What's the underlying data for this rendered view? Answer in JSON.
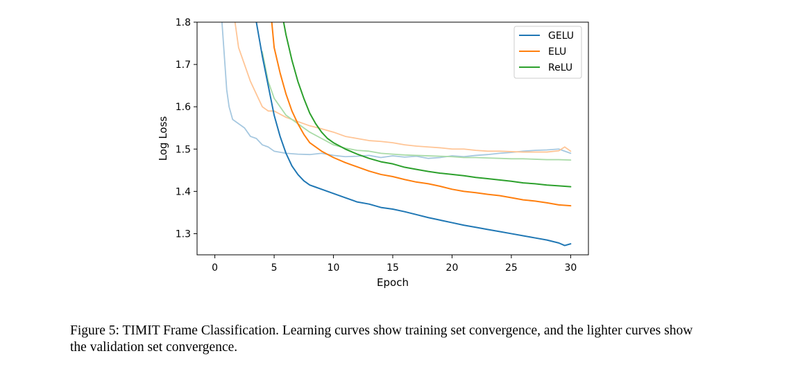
{
  "caption": "Figure 5: TIMIT Frame Classification. Learning curves show training set convergence, and the lighter curves show the validation set convergence.",
  "chart_data": {
    "type": "line",
    "xlabel": "Epoch",
    "ylabel": "Log Loss",
    "xlim": [
      -1.5,
      31.5
    ],
    "ylim": [
      1.25,
      1.8
    ],
    "xticks": [
      0,
      5,
      10,
      15,
      20,
      25,
      30
    ],
    "yticks": [
      1.3,
      1.4,
      1.5,
      1.6,
      1.7,
      1.8
    ],
    "xtick_labels": [
      "0",
      "5",
      "10",
      "15",
      "20",
      "25",
      "30"
    ],
    "ytick_labels": [
      "1.3",
      "1.4",
      "1.5",
      "1.6",
      "1.7",
      "1.8"
    ],
    "legend_position": "top-right",
    "series": [
      {
        "name": "GELU",
        "role": "train",
        "color": "#1f77b4",
        "x": [
          3.5,
          4,
          4.5,
          5,
          5.5,
          6,
          6.5,
          7,
          7.5,
          8,
          8.5,
          9,
          10,
          11,
          12,
          13,
          14,
          15,
          16,
          17,
          18,
          19,
          20,
          21,
          22,
          23,
          24,
          25,
          26,
          27,
          28,
          29,
          29.5,
          30
        ],
        "y": [
          1.8,
          1.72,
          1.65,
          1.58,
          1.53,
          1.49,
          1.46,
          1.44,
          1.425,
          1.415,
          1.41,
          1.405,
          1.395,
          1.385,
          1.375,
          1.37,
          1.362,
          1.358,
          1.352,
          1.345,
          1.338,
          1.332,
          1.326,
          1.32,
          1.315,
          1.31,
          1.305,
          1.3,
          1.295,
          1.29,
          1.285,
          1.278,
          1.272,
          1.276
        ]
      },
      {
        "name": "ELU",
        "role": "train",
        "color": "#ff7f0e",
        "x": [
          4.8,
          5,
          5.5,
          6,
          6.5,
          7,
          7.5,
          8,
          8.5,
          9,
          10,
          11,
          12,
          13,
          14,
          15,
          16,
          17,
          18,
          19,
          20,
          21,
          22,
          23,
          24,
          25,
          26,
          27,
          28,
          29,
          30
        ],
        "y": [
          1.8,
          1.74,
          1.68,
          1.63,
          1.59,
          1.56,
          1.535,
          1.515,
          1.505,
          1.495,
          1.48,
          1.468,
          1.458,
          1.448,
          1.44,
          1.435,
          1.428,
          1.422,
          1.418,
          1.412,
          1.405,
          1.4,
          1.397,
          1.393,
          1.39,
          1.385,
          1.38,
          1.377,
          1.373,
          1.368,
          1.366
        ]
      },
      {
        "name": "ReLU",
        "role": "train",
        "color": "#2ca02c",
        "x": [
          5.8,
          6,
          6.5,
          7,
          7.5,
          8,
          8.5,
          9,
          9.5,
          10,
          11,
          12,
          13,
          14,
          15,
          16,
          17,
          18,
          19,
          20,
          21,
          22,
          23,
          24,
          25,
          26,
          27,
          28,
          29,
          30
        ],
        "y": [
          1.8,
          1.77,
          1.71,
          1.66,
          1.62,
          1.585,
          1.56,
          1.54,
          1.525,
          1.515,
          1.5,
          1.488,
          1.478,
          1.47,
          1.465,
          1.457,
          1.452,
          1.447,
          1.443,
          1.44,
          1.437,
          1.433,
          1.43,
          1.427,
          1.424,
          1.42,
          1.418,
          1.415,
          1.413,
          1.411
        ]
      },
      {
        "name": "GELU (validation)",
        "role": "validation",
        "color": "#a6c8e0",
        "x": [
          0.6,
          0.8,
          1,
          1.2,
          1.5,
          2,
          2.5,
          3,
          3.5,
          4,
          4.5,
          5,
          6,
          7,
          8,
          9,
          10,
          11,
          12,
          13,
          14,
          15,
          16,
          17,
          18,
          19,
          20,
          21,
          22,
          23,
          24,
          25,
          26,
          27,
          28,
          29,
          30
        ],
        "y": [
          1.8,
          1.72,
          1.64,
          1.6,
          1.57,
          1.56,
          1.55,
          1.53,
          1.525,
          1.51,
          1.505,
          1.495,
          1.49,
          1.488,
          1.487,
          1.49,
          1.485,
          1.482,
          1.483,
          1.485,
          1.48,
          1.484,
          1.481,
          1.483,
          1.478,
          1.48,
          1.484,
          1.482,
          1.485,
          1.487,
          1.49,
          1.492,
          1.495,
          1.497,
          1.498,
          1.5,
          1.49
        ]
      },
      {
        "name": "ELU (validation)",
        "role": "validation",
        "color": "#ffc596",
        "x": [
          1.7,
          2,
          2.5,
          3,
          3.5,
          4,
          4.5,
          5,
          6,
          7,
          8,
          9,
          10,
          11,
          12,
          13,
          14,
          15,
          16,
          17,
          18,
          19,
          20,
          21,
          22,
          23,
          24,
          25,
          26,
          27,
          28,
          29,
          29.5,
          30
        ],
        "y": [
          1.8,
          1.74,
          1.7,
          1.66,
          1.63,
          1.6,
          1.59,
          1.59,
          1.575,
          1.565,
          1.555,
          1.548,
          1.54,
          1.53,
          1.525,
          1.52,
          1.518,
          1.515,
          1.51,
          1.507,
          1.505,
          1.503,
          1.5,
          1.5,
          1.497,
          1.495,
          1.495,
          1.494,
          1.493,
          1.493,
          1.493,
          1.496,
          1.505,
          1.495
        ]
      },
      {
        "name": "ReLU (validation)",
        "role": "validation",
        "color": "#a9dba7",
        "x": [
          4,
          4.5,
          5,
          5.5,
          6,
          6.5,
          7,
          8,
          9,
          10,
          11,
          12,
          13,
          14,
          15,
          16,
          17,
          18,
          19,
          20,
          21,
          22,
          23,
          24,
          25,
          26,
          27,
          28,
          29,
          30
        ],
        "y": [
          1.73,
          1.66,
          1.62,
          1.6,
          1.58,
          1.57,
          1.56,
          1.54,
          1.525,
          1.51,
          1.502,
          1.497,
          1.495,
          1.49,
          1.488,
          1.486,
          1.485,
          1.484,
          1.483,
          1.482,
          1.48,
          1.48,
          1.479,
          1.478,
          1.477,
          1.477,
          1.476,
          1.475,
          1.475,
          1.474
        ]
      }
    ],
    "legend": [
      {
        "label": "GELU",
        "color": "#1f77b4"
      },
      {
        "label": "ELU",
        "color": "#ff7f0e"
      },
      {
        "label": "ReLU",
        "color": "#2ca02c"
      }
    ]
  }
}
